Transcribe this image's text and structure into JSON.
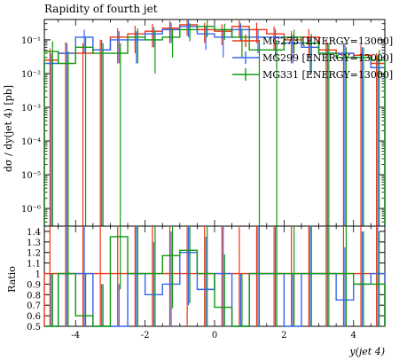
{
  "chart_data": [
    {
      "type": "line",
      "title": "Rapidity of fourth jet",
      "xlabel": "",
      "ylabel": "dσ / dy(jet 4) [pb]",
      "yscale": "log",
      "ylim": [
        3e-07,
        0.4
      ],
      "xlim": [
        -4.9,
        4.9
      ],
      "yticks": [
        {
          "value": 1e-06,
          "label": "10⁻⁶"
        },
        {
          "value": 1e-05,
          "label": "10⁻⁵"
        },
        {
          "value": 0.0001,
          "label": "10⁻⁴"
        },
        {
          "value": 0.001,
          "label": "10⁻³"
        },
        {
          "value": 0.01,
          "label": "10⁻²"
        },
        {
          "value": 0.1,
          "label": "10⁻¹"
        }
      ],
      "legend": "top-right",
      "bin_edges": [
        -4.9,
        -4.5,
        -4.0,
        -3.5,
        -3.0,
        -2.5,
        -2.0,
        -1.5,
        -1.0,
        -0.5,
        0.0,
        0.5,
        1.0,
        1.5,
        2.0,
        2.5,
        3.0,
        3.5,
        4.0,
        4.5,
        4.9
      ],
      "series": [
        {
          "name": "MG273 [ENERGY=13000]",
          "color": "#ee3311",
          "values": [
            0.025,
            0.04,
            0.04,
            0.05,
            0.12,
            0.15,
            0.18,
            0.22,
            0.28,
            0.2,
            0.18,
            0.25,
            0.2,
            0.15,
            0.1,
            0.12,
            0.05,
            0.04,
            0.035,
            0.02
          ],
          "err": [
            0.03,
            0.045,
            0.04,
            0.05,
            0.1,
            0.11,
            0.12,
            0.14,
            0.15,
            0.12,
            0.11,
            0.13,
            0.12,
            0.1,
            0.08,
            0.09,
            0.05,
            0.04,
            0.035,
            0.02
          ]
        },
        {
          "name": "MG299 [ENERGY=13000]",
          "color": "#3366ee",
          "values": [
            0.02,
            0.04,
            0.12,
            0.05,
            0.1,
            0.1,
            0.15,
            0.2,
            0.25,
            0.15,
            0.12,
            0.2,
            0.12,
            0.12,
            0.08,
            0.06,
            0.04,
            0.04,
            0.03,
            0.015
          ],
          "err": [
            0.02,
            0.04,
            0.08,
            0.05,
            0.08,
            0.08,
            0.09,
            0.12,
            0.13,
            0.1,
            0.09,
            0.11,
            0.08,
            0.09,
            0.06,
            0.05,
            0.04,
            0.04,
            0.03,
            0.015
          ]
        },
        {
          "name": "MG331 [ENERGY=13000]",
          "color": "#119911",
          "values": [
            0.045,
            0.02,
            0.06,
            0.04,
            0.04,
            0.12,
            0.1,
            0.12,
            0.2,
            0.25,
            0.2,
            0.12,
            0.05,
            0.05,
            0.12,
            0.08,
            0.04,
            0.03,
            0.03,
            0.025
          ],
          "err": [
            0.045,
            0.025,
            0.06,
            0.04,
            0.04,
            0.1,
            0.09,
            0.09,
            0.11,
            0.13,
            0.1,
            0.09,
            0.05,
            0.05,
            0.08,
            0.07,
            0.04,
            0.03,
            0.03,
            0.025
          ]
        }
      ]
    },
    {
      "type": "line",
      "title": "",
      "xlabel": "y(jet 4)",
      "ylabel": "Ratio",
      "ylim": [
        0.5,
        1.45
      ],
      "xlim": [
        -4.9,
        4.9
      ],
      "yticks": [
        0.5,
        0.6,
        0.7,
        0.8,
        0.9,
        1,
        1.1,
        1.2,
        1.3,
        1.4
      ],
      "xticks": [
        -4,
        -2,
        0,
        2,
        4
      ],
      "bin_edges": [
        -4.9,
        -4.5,
        -4.0,
        -3.5,
        -3.0,
        -2.5,
        -2.0,
        -1.5,
        -1.0,
        -0.5,
        0.0,
        0.5,
        1.0,
        1.5,
        2.0,
        2.5,
        3.0,
        3.5,
        4.0,
        4.5,
        4.9
      ],
      "series": [
        {
          "name": "MG273 [ENERGY=13000]",
          "color": "#ee3311",
          "values": [
            1,
            1,
            1,
            1,
            1,
            1,
            1,
            1,
            1,
            1,
            1,
            1,
            1,
            1,
            1,
            1,
            1,
            1,
            1,
            1
          ],
          "err": [
            0.5,
            0.5,
            0.5,
            0.5,
            0.5,
            0.5,
            0.5,
            0.5,
            0.5,
            0.5,
            0.5,
            0.5,
            0.5,
            0.5,
            0.5,
            0.5,
            0.5,
            0.5,
            0.5,
            0.5
          ]
        },
        {
          "name": "MG299 [ENERGY=13000]",
          "color": "#3366ee",
          "values": [
            0.5,
            1.0,
            1.0,
            0.5,
            0.5,
            1.0,
            0.8,
            0.9,
            1.2,
            0.85,
            1.0,
            0.5,
            1.0,
            1.0,
            0.5,
            1.0,
            1.0,
            0.75,
            0.9,
            1.0
          ],
          "err": [
            0.5,
            0.5,
            0.5,
            0.4,
            0.4,
            0.5,
            0.5,
            0.5,
            0.5,
            0.5,
            0.5,
            0.5,
            0.5,
            0.5,
            0.5,
            0.5,
            0.5,
            0.5,
            0.5,
            0.5
          ]
        },
        {
          "name": "MG331 [ENERGY=13000]",
          "color": "#119911",
          "values": [
            0.5,
            1.0,
            0.6,
            0.5,
            1.35,
            1.0,
            1.0,
            1.17,
            1.22,
            1.0,
            0.68,
            0.5,
            1.0,
            1.0,
            1.0,
            1.0,
            1.0,
            1.0,
            0.9,
            0.9
          ],
          "err": [
            0.5,
            0.5,
            0.4,
            0.4,
            0.5,
            0.5,
            0.5,
            0.5,
            0.5,
            0.5,
            0.5,
            0.5,
            0.5,
            0.5,
            0.5,
            0.5,
            0.5,
            0.5,
            0.5,
            0.5
          ]
        }
      ]
    }
  ]
}
